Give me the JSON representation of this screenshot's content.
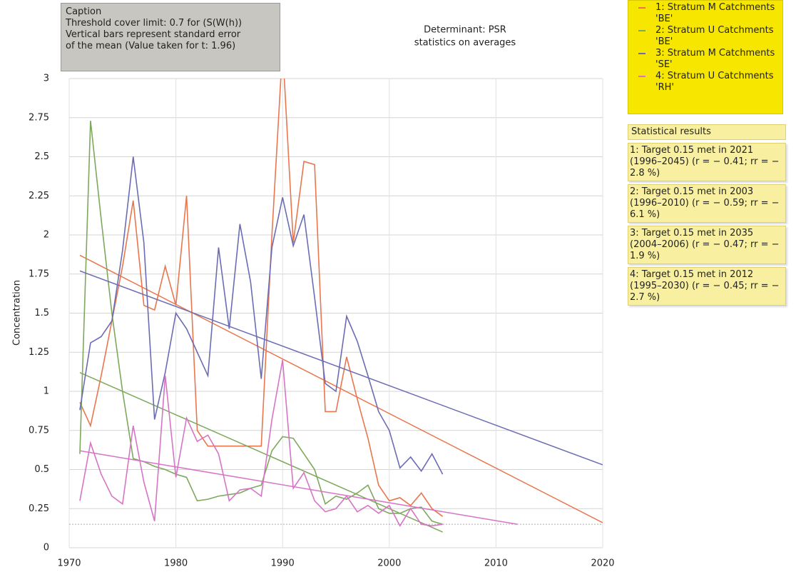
{
  "chart_data": {
    "type": "line",
    "caption": [
      "Caption",
      "Threshold cover limit: 0.7 for (S(W(h))",
      "Vertical bars represent standard error",
      "of the mean (Value taken for t: 1.96)"
    ],
    "title": [
      "Determinant: PSR",
      "statistics on averages"
    ],
    "y_label": "Concentration",
    "xlim": [
      1970,
      2020
    ],
    "xticks": [
      1970,
      1980,
      1990,
      2000,
      2010,
      2020
    ],
    "ylim": [
      0,
      3
    ],
    "yticks": [
      0,
      0.25,
      0.5,
      0.75,
      1,
      1.25,
      1.5,
      1.75,
      2,
      2.25,
      2.5,
      2.75,
      3
    ],
    "grid": true,
    "threshold": 0.15,
    "x": [
      1971,
      1972,
      1973,
      1974,
      1975,
      1976,
      1977,
      1978,
      1979,
      1980,
      1981,
      1982,
      1983,
      1984,
      1985,
      1986,
      1987,
      1988,
      1989,
      1990,
      1991,
      1992,
      1993,
      1994,
      1995,
      1996,
      1997,
      1998,
      1999,
      2000,
      2001,
      2002,
      2003,
      2004,
      2005
    ],
    "series": [
      {
        "name": "1: Stratum M Catchments 'BE'",
        "color": "#e8764e",
        "values": [
          0.93,
          0.78,
          1.1,
          1.45,
          1.8,
          2.22,
          1.55,
          1.52,
          1.8,
          1.55,
          2.25,
          0.75,
          0.65,
          0.65,
          0.65,
          0.65,
          0.65,
          0.65,
          2.0,
          3.2,
          1.95,
          2.47,
          2.45,
          0.87,
          0.87,
          1.22,
          0.95,
          0.7,
          0.4,
          0.3,
          0.32,
          0.27,
          0.35,
          0.25,
          0.2
        ],
        "trend": {
          "x": [
            1971,
            2020
          ],
          "values": [
            1.87,
            0.16
          ]
        }
      },
      {
        "name": "2: Stratum U Catchments 'BE'",
        "color": "#7ea85c",
        "values": [
          0.6,
          2.73,
          2.1,
          1.5,
          1.0,
          0.57,
          0.55,
          0.52,
          0.5,
          0.47,
          0.45,
          0.3,
          0.31,
          0.33,
          0.34,
          0.35,
          0.38,
          0.4,
          0.62,
          0.71,
          0.7,
          0.6,
          0.5,
          0.28,
          0.33,
          0.31,
          0.35,
          0.4,
          0.25,
          0.22,
          0.22,
          0.25,
          0.26,
          0.17,
          0.15
        ],
        "trend": {
          "x": [
            1971,
            2005
          ],
          "values": [
            1.12,
            0.1
          ]
        }
      },
      {
        "name": "3: Stratum M Catchments 'SE'",
        "color": "#6c6cb4",
        "values": [
          0.88,
          1.31,
          1.35,
          1.45,
          1.9,
          2.5,
          1.95,
          0.82,
          1.12,
          1.5,
          1.4,
          1.25,
          1.1,
          1.92,
          1.4,
          2.07,
          1.7,
          1.08,
          1.92,
          2.24,
          1.93,
          2.13,
          1.6,
          1.05,
          1.0,
          1.48,
          1.32,
          1.1,
          0.87,
          0.75,
          0.51,
          0.58,
          0.49,
          0.6,
          0.47
        ],
        "trend": {
          "x": [
            1971,
            2020
          ],
          "values": [
            1.77,
            0.53
          ]
        }
      },
      {
        "name": "4: Stratum U Catchments 'RH'",
        "color": "#d674c6",
        "values": [
          0.3,
          0.67,
          0.47,
          0.33,
          0.28,
          0.78,
          0.42,
          0.17,
          1.1,
          0.45,
          0.83,
          0.68,
          0.72,
          0.6,
          0.3,
          0.37,
          0.38,
          0.33,
          0.82,
          1.2,
          0.38,
          0.48,
          0.3,
          0.23,
          0.25,
          0.33,
          0.23,
          0.27,
          0.22,
          0.27,
          0.14,
          0.25,
          0.15,
          0.14,
          0.15
        ],
        "trend": {
          "x": [
            1971,
            2012
          ],
          "values": [
            0.62,
            0.15
          ]
        }
      }
    ],
    "stats_title": "Statistical results",
    "stats": [
      "1: Target 0.15 met in 2021 (1996–2045) (r = − 0.41; rr = − 2.8 %)",
      "2: Target 0.15 met in 2003 (1996–2010) (r = − 0.59; rr = − 6.1 %)",
      "3: Target 0.15 met in 2035 (2004–2006) (r = − 0.47; rr = − 1.9 %)",
      "4: Target 0.15 met in 2012 (1995–2030) (r = − 0.45; rr = − 2.7 %)"
    ]
  }
}
